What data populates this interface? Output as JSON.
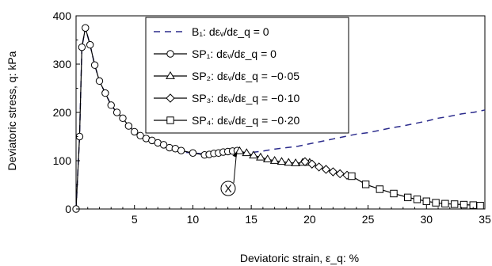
{
  "chart_data": {
    "type": "line",
    "xlabel": "Deviatoric strain, ε_q: %",
    "ylabel": "Deviatoric stress, q: kPa",
    "xlim": [
      0,
      35
    ],
    "ylim": [
      0,
      400
    ],
    "x_ticks": [
      "5",
      "10",
      "15",
      "20",
      "25",
      "30",
      "35"
    ],
    "y_ticks": [
      "0",
      "100",
      "200",
      "300",
      "400"
    ],
    "grid": false,
    "legend_position": "top-center",
    "annotation": "X",
    "annotation_point": [
      13.8,
      120
    ],
    "series": [
      {
        "name": "B₁: dεᵥ/dε_q = 0",
        "style": "dashed",
        "color": "#2b2b8c",
        "x": [
          0,
          0.3,
          0.5,
          0.8,
          1.2,
          1.6,
          2.0,
          2.5,
          3.0,
          3.5,
          4.0,
          5,
          6,
          7,
          8,
          9,
          10,
          11,
          12,
          13,
          14,
          15,
          16,
          17,
          18,
          19,
          20,
          21,
          22,
          23,
          24,
          25,
          26,
          27,
          28,
          29,
          30,
          31,
          32,
          33,
          34,
          35
        ],
        "y": [
          0,
          150,
          335,
          375,
          340,
          298,
          265,
          240,
          215,
          200,
          188,
          160,
          145,
          133,
          125,
          118,
          116,
          114,
          114,
          114,
          115,
          117,
          120,
          124,
          127,
          130,
          135,
          140,
          145,
          150,
          155,
          158,
          163,
          168,
          172,
          177,
          182,
          188,
          192,
          197,
          200,
          205
        ]
      },
      {
        "name": "SP₁: dεᵥ/dε_q = 0",
        "marker": "circle",
        "x": [
          0,
          0.3,
          0.5,
          0.8,
          1.2,
          1.6,
          2.0,
          2.5,
          3.0,
          3.5,
          4.0,
          4.5,
          5.0,
          5.5,
          6.0,
          6.5,
          7.0,
          7.5,
          8.0,
          8.5,
          9.0,
          10.0,
          11.0,
          11.4,
          11.8,
          12.2,
          12.6,
          13.0,
          13.4,
          13.8
        ],
        "y": [
          0,
          150,
          335,
          375,
          340,
          298,
          265,
          240,
          215,
          200,
          188,
          172,
          160,
          152,
          146,
          142,
          137,
          133,
          127,
          125,
          121,
          116,
          112,
          113,
          115,
          116,
          118,
          119,
          120,
          121
        ]
      },
      {
        "name": "SP₂: dεᵥ/dε_q = −0·05",
        "marker": "triangle",
        "x": [
          14.0,
          14.6,
          15.2,
          15.8,
          16.4,
          17.0,
          17.6,
          18.2,
          18.8,
          19.4,
          20.0
        ],
        "y": [
          120,
          116,
          111,
          107,
          103,
          100,
          98,
          96,
          95,
          96,
          96
        ]
      },
      {
        "name": "SP₃: dεᵥ/dε_q = −0·10",
        "marker": "diamond",
        "x": [
          19.6,
          20.2,
          20.8,
          21.4,
          22.0,
          22.6,
          23.2
        ],
        "y": [
          98,
          93,
          87,
          82,
          77,
          73,
          70
        ]
      },
      {
        "name": "SP₄: dεᵥ/dε_q = −0·20",
        "marker": "square",
        "x": [
          23.6,
          24.8,
          26.0,
          27.2,
          28.4,
          29.2,
          30.0,
          30.8,
          31.6,
          32.4,
          33.2,
          34.0,
          34.6
        ],
        "y": [
          68,
          51,
          41,
          32,
          24,
          20,
          16,
          13,
          11,
          10,
          9,
          8,
          7
        ]
      }
    ]
  }
}
